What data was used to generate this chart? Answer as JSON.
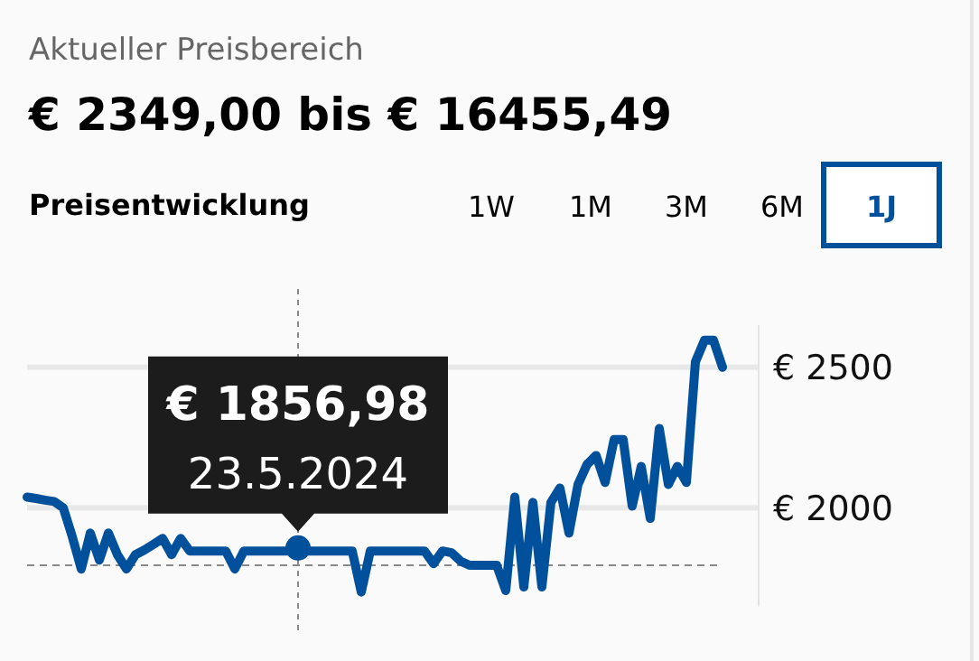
{
  "chart_data": {
    "type": "line",
    "title": "Aktueller Preisbereich",
    "subtitle": "€ 2349,00 bis € 16455,49",
    "annotations": [
      "Preisentwicklung",
      "1W",
      "1M",
      "3M",
      "6M",
      "1J",
      {
        "text": "€ 1856,98\n23.5.2024",
        "y": 1856.98
      }
    ],
    "categories": [
      null,
      null,
      null,
      null,
      null,
      null,
      null,
      null,
      null,
      null,
      null,
      null,
      null,
      null,
      null,
      null,
      null,
      null,
      null,
      null,
      null,
      null,
      null,
      null,
      null,
      null,
      null,
      null,
      null,
      null,
      null,
      null,
      null,
      null,
      null,
      null,
      null,
      null,
      null,
      null,
      null,
      null,
      null,
      null,
      null,
      null,
      null,
      null,
      null,
      null,
      null,
      null,
      null,
      null,
      null,
      null,
      null,
      null,
      null,
      null,
      null,
      null,
      null,
      null,
      null,
      null,
      null,
      null,
      null,
      null,
      null,
      null,
      null,
      null,
      null,
      null,
      null,
      null
    ],
    "series": [
      {
        "color": "#00509b",
        "values": [
          2038,
          2033,
          2027,
          2022,
          2000,
          1897,
          1782,
          1910,
          1814,
          1910,
          1833,
          1782,
          1833,
          1850,
          1870,
          1891,
          1833,
          1891,
          1846,
          1846,
          1846,
          1846,
          1846,
          1782,
          1846,
          1846,
          1846,
          1846,
          1846,
          1846,
          1856.98,
          1846,
          1846,
          1846,
          1846,
          1846,
          1846,
          1700,
          1846,
          1846,
          1846,
          1846,
          1846,
          1846,
          1846,
          1801,
          1846,
          1840,
          1810,
          1795,
          1795,
          1795,
          1795,
          1705,
          2038,
          1718,
          2019,
          1718,
          2019,
          2070,
          1910,
          2083,
          2154,
          2186,
          2090,
          2243,
          2243,
          2006,
          2147,
          1962,
          2282,
          2083,
          2147,
          2090,
          2519,
          2596,
          2596,
          2500
        ]
      }
    ],
    "ylim": [
      1650,
      2650
    ],
    "yticks": [
      {
        "value": 2000,
        "label": "€ 2000"
      },
      {
        "value": 2500,
        "label": "€ 2500"
      }
    ],
    "tick_labels": "y",
    "grid": "y",
    "marker": "none",
    "line_style": "solid",
    "ref_lines": [
      {
        "axis": "y",
        "value": 1795,
        "label": null,
        "color": "#888888",
        "line_style": "dashed"
      }
    ]
  }
}
